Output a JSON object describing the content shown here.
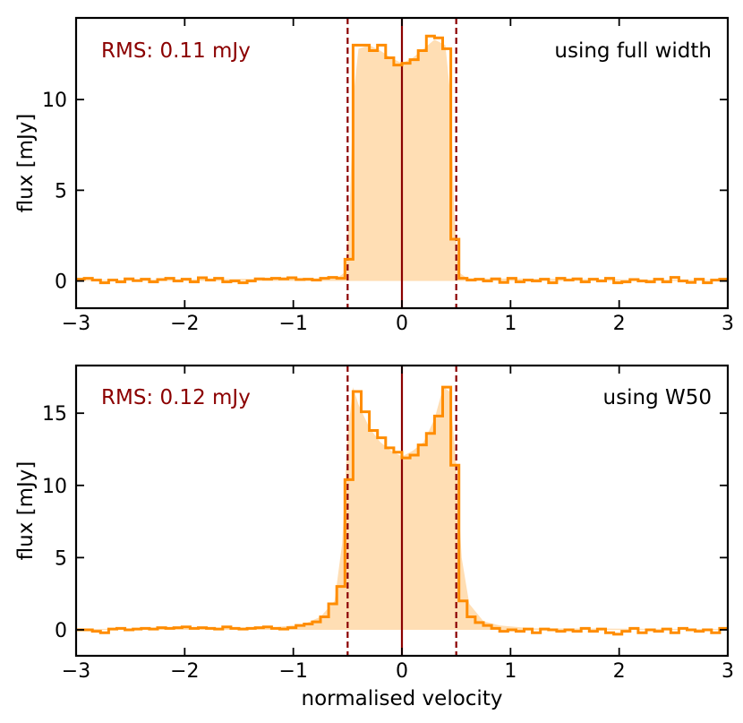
{
  "colors": {
    "step": "#ff8c00",
    "fill": "#ffdeb4",
    "line": "#8b0000",
    "dash": "#8b0000",
    "rms": "#8b0000",
    "axis": "#000000"
  },
  "chart_data": [
    {
      "type": "line",
      "subtype": "step-histogram",
      "ylabel": "flux [mJy]",
      "xlabel": "",
      "xlim": [
        -3,
        3
      ],
      "ylim": [
        -1.5,
        14.5
      ],
      "xticks": [
        -3,
        -2,
        -1,
        0,
        1,
        2,
        3
      ],
      "xtick_labels": [
        "−3",
        "−2",
        "−1",
        "0",
        "1",
        "2",
        "3"
      ],
      "yticks": [
        0,
        5,
        10
      ],
      "ytick_labels": [
        "0",
        "5",
        "10"
      ],
      "rms_text": "RMS: 0.11 mJy",
      "label_text": "using full width",
      "vlines_solid": [
        0
      ],
      "vlines_dashed": [
        -0.5,
        0.5
      ],
      "bin_width": 0.075,
      "step_series": {
        "name": "spectrum",
        "x": [
          -3.0,
          -2.925,
          -2.85,
          -2.775,
          -2.7,
          -2.625,
          -2.55,
          -2.475,
          -2.4,
          -2.325,
          -2.25,
          -2.175,
          -2.1,
          -2.025,
          -1.95,
          -1.875,
          -1.8,
          -1.725,
          -1.65,
          -1.575,
          -1.5,
          -1.425,
          -1.35,
          -1.275,
          -1.2,
          -1.125,
          -1.05,
          -0.975,
          -0.9,
          -0.825,
          -0.75,
          -0.675,
          -0.6,
          -0.525,
          -0.45,
          -0.375,
          -0.3,
          -0.225,
          -0.15,
          -0.075,
          0.0,
          0.075,
          0.15,
          0.225,
          0.3,
          0.375,
          0.45,
          0.525,
          0.6,
          0.675,
          0.75,
          0.825,
          0.9,
          0.975,
          1.05,
          1.125,
          1.2,
          1.275,
          1.35,
          1.425,
          1.5,
          1.575,
          1.65,
          1.725,
          1.8,
          1.875,
          1.95,
          2.025,
          2.1,
          2.175,
          2.25,
          2.325,
          2.4,
          2.475,
          2.55,
          2.625,
          2.7,
          2.775,
          2.85,
          2.925
        ],
        "values": [
          0.1,
          0.15,
          0.05,
          -0.1,
          0.05,
          -0.05,
          0.12,
          0.02,
          0.1,
          -0.05,
          0.08,
          0.15,
          0.0,
          0.1,
          -0.05,
          0.18,
          0.05,
          0.15,
          -0.05,
          0.0,
          -0.1,
          0.0,
          0.12,
          0.1,
          0.15,
          0.12,
          0.18,
          0.08,
          0.1,
          0.05,
          0.15,
          0.2,
          0.15,
          1.2,
          13.0,
          13.0,
          12.7,
          13.0,
          12.3,
          11.9,
          12.0,
          12.2,
          12.7,
          13.5,
          13.4,
          12.8,
          2.3,
          0.15,
          0.05,
          0.1,
          0.0,
          0.12,
          -0.08,
          0.15,
          -0.05,
          0.05,
          0.0,
          0.1,
          -0.1,
          0.15,
          0.05,
          0.12,
          -0.05,
          0.1,
          0.0,
          0.15,
          -0.1,
          -0.05,
          0.08,
          0.0,
          -0.05,
          0.1,
          -0.05,
          0.2,
          0.0,
          -0.08,
          0.1,
          -0.1,
          0.05,
          0.1
        ]
      },
      "fill_curve": {
        "x": [
          -3.0,
          -0.6,
          -0.52,
          -0.48,
          -0.45,
          -0.4,
          -0.3,
          -0.2,
          -0.1,
          0.0,
          0.1,
          0.2,
          0.3,
          0.4,
          0.45,
          0.48,
          0.52,
          0.6,
          3.0
        ],
        "values": [
          0.05,
          0.15,
          0.5,
          4.0,
          10.0,
          12.8,
          13.0,
          12.7,
          12.3,
          12.0,
          12.3,
          12.8,
          13.3,
          13.0,
          10.0,
          4.0,
          0.5,
          0.15,
          0.05
        ]
      }
    },
    {
      "type": "line",
      "subtype": "step-histogram",
      "ylabel": "flux [mJy]",
      "xlabel": "normalised velocity",
      "xlim": [
        -3,
        3
      ],
      "ylim": [
        -1.8,
        18.3
      ],
      "xticks": [
        -3,
        -2,
        -1,
        0,
        1,
        2,
        3
      ],
      "xtick_labels": [
        "−3",
        "−2",
        "−1",
        "0",
        "1",
        "2",
        "3"
      ],
      "yticks": [
        0,
        5,
        10,
        15
      ],
      "ytick_labels": [
        "0",
        "5",
        "10",
        "15"
      ],
      "rms_text": "RMS: 0.12 mJy",
      "label_text": "using W50",
      "vlines_solid": [
        0
      ],
      "vlines_dashed": [
        -0.5,
        0.5
      ],
      "bin_width": 0.075,
      "step_series": {
        "name": "spectrum",
        "x": [
          -3.0,
          -2.925,
          -2.85,
          -2.775,
          -2.7,
          -2.625,
          -2.55,
          -2.475,
          -2.4,
          -2.325,
          -2.25,
          -2.175,
          -2.1,
          -2.025,
          -1.95,
          -1.875,
          -1.8,
          -1.725,
          -1.65,
          -1.575,
          -1.5,
          -1.425,
          -1.35,
          -1.275,
          -1.2,
          -1.125,
          -1.05,
          -0.975,
          -0.9,
          -0.825,
          -0.75,
          -0.675,
          -0.6,
          -0.525,
          -0.45,
          -0.375,
          -0.3,
          -0.225,
          -0.15,
          -0.075,
          0.0,
          0.075,
          0.15,
          0.225,
          0.3,
          0.375,
          0.45,
          0.525,
          0.6,
          0.675,
          0.75,
          0.825,
          0.9,
          0.975,
          1.05,
          1.125,
          1.2,
          1.275,
          1.35,
          1.425,
          1.5,
          1.575,
          1.65,
          1.725,
          1.8,
          1.875,
          1.95,
          2.025,
          2.1,
          2.175,
          2.25,
          2.325,
          2.4,
          2.475,
          2.55,
          2.625,
          2.7,
          2.775,
          2.85,
          2.925
        ],
        "values": [
          0.0,
          0.0,
          -0.1,
          -0.2,
          0.05,
          0.1,
          0.0,
          0.05,
          0.1,
          0.05,
          0.15,
          0.1,
          0.15,
          0.2,
          0.1,
          0.15,
          0.1,
          0.05,
          0.2,
          0.1,
          0.05,
          0.1,
          0.15,
          0.2,
          0.1,
          0.05,
          0.15,
          0.3,
          0.4,
          0.55,
          0.9,
          1.8,
          3.0,
          10.4,
          16.5,
          15.1,
          13.8,
          13.3,
          12.6,
          12.3,
          11.9,
          12.1,
          12.8,
          13.6,
          14.8,
          16.8,
          11.4,
          2.0,
          0.9,
          0.5,
          0.3,
          0.1,
          -0.1,
          0.0,
          -0.1,
          0.05,
          -0.2,
          0.05,
          0.0,
          -0.1,
          0.0,
          -0.1,
          0.1,
          -0.1,
          0.05,
          -0.2,
          -0.3,
          -0.1,
          0.1,
          -0.2,
          0.0,
          -0.1,
          0.05,
          -0.2,
          0.1,
          0.0,
          -0.1,
          0.0,
          -0.2,
          0.1
        ]
      },
      "fill_curve": {
        "x": [
          -3.0,
          -1.2,
          -0.9,
          -0.75,
          -0.62,
          -0.55,
          -0.5,
          -0.45,
          -0.4,
          -0.3,
          -0.2,
          -0.1,
          0.0,
          0.1,
          0.2,
          0.3,
          0.38,
          0.44,
          0.5,
          0.55,
          0.62,
          0.75,
          0.9,
          1.2,
          3.0
        ],
        "values": [
          0.05,
          0.15,
          0.4,
          0.9,
          2.0,
          6.0,
          13.5,
          16.8,
          15.6,
          14.0,
          13.0,
          12.4,
          12.0,
          12.4,
          13.0,
          14.6,
          16.8,
          16.5,
          11.5,
          5.0,
          1.8,
          0.6,
          0.3,
          0.1,
          0.05
        ]
      }
    }
  ]
}
